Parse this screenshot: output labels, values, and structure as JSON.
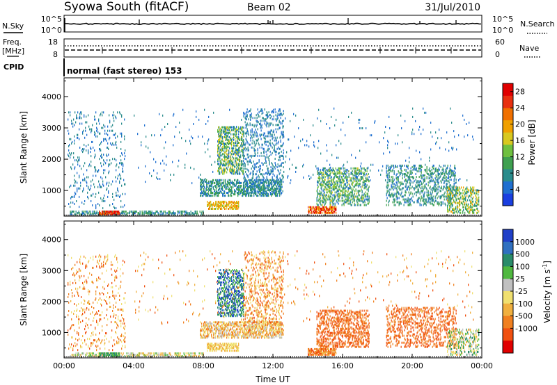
{
  "header": {
    "station": "Syowa South (fitACF)",
    "beam": "Beam 02",
    "date": "31/Jul/2010"
  },
  "labels": {
    "nsky": "N.Sky",
    "nsearch": "N.Search",
    "freq_top": "Freq.",
    "freq_unit": "[MHz]",
    "nave": "Nave",
    "cpid": "CPID",
    "cpid_value": "normal (fast stereo) 153",
    "slant_range": "Slant Range [km]",
    "time_axis": "Time UT",
    "noise_ticks_left": [
      "10^5",
      "10^0"
    ],
    "noise_ticks_right": [
      "10^5",
      "10^0"
    ],
    "freq_ticks_left": [
      "18",
      "8"
    ],
    "freq_ticks_right": [
      "60",
      "0"
    ]
  },
  "chart_data": [
    {
      "type": "heatmap",
      "panel": "power",
      "xlabel": "Time UT",
      "ylabel": "Slant Range [km]",
      "x_ticks": [
        "00:00",
        "04:00",
        "08:00",
        "12:00",
        "16:00",
        "20:00",
        "00:00"
      ],
      "xlim_hours": [
        0,
        24
      ],
      "ylim": [
        180,
        4600
      ],
      "y_ticks": [
        1000,
        2000,
        3000,
        4000
      ],
      "colorbar": {
        "label": "Power [dB]",
        "ticks": [
          "4",
          "8",
          "12",
          "16",
          "20",
          "24",
          "28"
        ],
        "range": [
          0,
          30
        ],
        "colors": [
          "#1a3fe0",
          "#1f6fd0",
          "#2a8c8c",
          "#3fa050",
          "#6fc040",
          "#d8c820",
          "#f0a000",
          "#f07000",
          "#e83010",
          "#e00000"
        ]
      },
      "regions": [
        {
          "t0": 0.3,
          "t1": 8.0,
          "r0": 200,
          "r1": 300,
          "v0": 4,
          "v1": 12,
          "density": 0.45
        },
        {
          "t0": 2.0,
          "t1": 3.2,
          "r0": 200,
          "r1": 320,
          "v0": 22,
          "v1": 30,
          "density": 0.7
        },
        {
          "t0": 0.2,
          "t1": 3.5,
          "r0": 400,
          "r1": 3500,
          "v0": 3,
          "v1": 9,
          "density": 0.07
        },
        {
          "t0": 8.2,
          "t1": 10.0,
          "r0": 380,
          "r1": 650,
          "v0": 14,
          "v1": 22,
          "density": 0.55
        },
        {
          "t0": 7.8,
          "t1": 12.5,
          "r0": 800,
          "r1": 1300,
          "v0": 4,
          "v1": 12,
          "density": 0.45
        },
        {
          "t0": 8.8,
          "t1": 10.3,
          "r0": 1500,
          "r1": 3000,
          "v0": 4,
          "v1": 18,
          "density": 0.4
        },
        {
          "t0": 10.3,
          "t1": 12.6,
          "r0": 900,
          "r1": 3600,
          "v0": 3,
          "v1": 9,
          "density": 0.18
        },
        {
          "t0": 14.0,
          "t1": 15.6,
          "r0": 250,
          "r1": 450,
          "v0": 18,
          "v1": 30,
          "density": 0.65
        },
        {
          "t0": 14.5,
          "t1": 17.5,
          "r0": 500,
          "r1": 1700,
          "v0": 4,
          "v1": 16,
          "density": 0.35
        },
        {
          "t0": 18.5,
          "t1": 22.5,
          "r0": 500,
          "r1": 1800,
          "v0": 4,
          "v1": 12,
          "density": 0.25
        },
        {
          "t0": 22.0,
          "t1": 23.8,
          "r0": 250,
          "r1": 1100,
          "v0": 6,
          "v1": 20,
          "density": 0.35
        },
        {
          "t0": 4.0,
          "t1": 23.5,
          "r0": 1200,
          "r1": 3600,
          "v0": 3,
          "v1": 8,
          "density": 0.015
        }
      ]
    },
    {
      "type": "heatmap",
      "panel": "velocity",
      "xlabel": "Time UT",
      "ylabel": "Slant Range [km]",
      "x_ticks": [
        "00:00",
        "04:00",
        "08:00",
        "12:00",
        "16:00",
        "20:00",
        "00:00"
      ],
      "xlim_hours": [
        0,
        24
      ],
      "ylim": [
        180,
        4600
      ],
      "y_ticks": [
        1000,
        2000,
        3000,
        4000
      ],
      "colorbar": {
        "label": "Velocity [m s^-1]",
        "ticks": [
          "1000",
          "500",
          "100",
          "25",
          "-25",
          "-100",
          "-500",
          "-1000"
        ],
        "colors": [
          "#2040c8",
          "#3070c0",
          "#2a8c6a",
          "#50b840",
          "#c0c0c0",
          "#f0e070",
          "#f0b040",
          "#f08020",
          "#f05010",
          "#e00000"
        ]
      },
      "regions": [
        {
          "t0": 0.3,
          "t1": 8.0,
          "r0": 200,
          "r1": 300,
          "v0": 3,
          "v1": 6,
          "density": 0.45
        },
        {
          "t0": 2.0,
          "t1": 3.2,
          "r0": 200,
          "r1": 320,
          "v0": 2,
          "v1": 3,
          "density": 0.7
        },
        {
          "t0": 0.2,
          "t1": 3.5,
          "r0": 400,
          "r1": 3500,
          "v0": 5,
          "v1": 8,
          "density": 0.07
        },
        {
          "t0": 8.2,
          "t1": 10.0,
          "r0": 380,
          "r1": 650,
          "v0": 5,
          "v1": 6,
          "density": 0.55
        },
        {
          "t0": 7.8,
          "t1": 12.5,
          "r0": 800,
          "r1": 1300,
          "v0": 4,
          "v1": 7,
          "density": 0.45
        },
        {
          "t0": 8.8,
          "t1": 10.3,
          "r0": 1500,
          "r1": 3000,
          "v0": 0,
          "v1": 3,
          "density": 0.4
        },
        {
          "t0": 10.3,
          "t1": 12.6,
          "r0": 900,
          "r1": 3600,
          "v0": 5,
          "v1": 8,
          "density": 0.18
        },
        {
          "t0": 14.0,
          "t1": 15.6,
          "r0": 250,
          "r1": 450,
          "v0": 6,
          "v1": 8,
          "density": 0.65
        },
        {
          "t0": 14.5,
          "t1": 17.5,
          "r0": 500,
          "r1": 1700,
          "v0": 7,
          "v1": 8,
          "density": 0.35
        },
        {
          "t0": 18.5,
          "t1": 22.5,
          "r0": 500,
          "r1": 1800,
          "v0": 7,
          "v1": 8,
          "density": 0.25
        },
        {
          "t0": 22.0,
          "t1": 23.8,
          "r0": 250,
          "r1": 1100,
          "v0": 2,
          "v1": 6,
          "density": 0.35
        },
        {
          "t0": 4.0,
          "t1": 23.5,
          "r0": 1200,
          "r1": 3600,
          "v0": 5,
          "v1": 8,
          "density": 0.015
        }
      ]
    }
  ]
}
